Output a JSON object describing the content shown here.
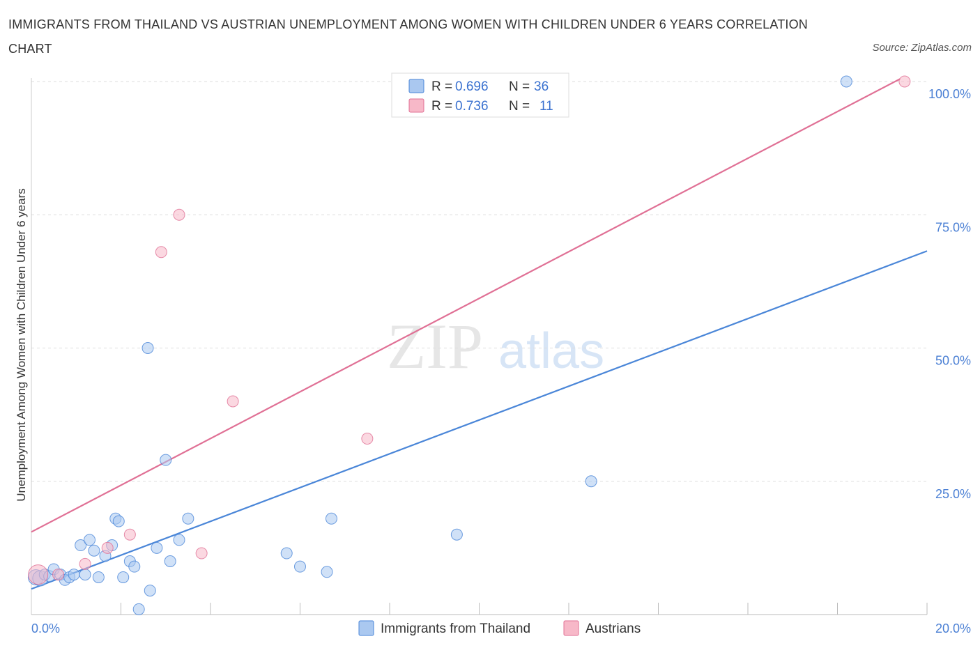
{
  "title": "IMMIGRANTS FROM THAILAND VS AUSTRIAN UNEMPLOYMENT AMONG WOMEN WITH CHILDREN UNDER 6 YEARS CORRELATION CHART",
  "source": "Source: ZipAtlas.com",
  "watermark": {
    "zip": "ZIP",
    "atlas": "atlas"
  },
  "legend_top": {
    "r_label": "R =",
    "n_label": "N =",
    "rows": [
      {
        "r": "0.696",
        "n": "36",
        "color": "#aac8f0"
      },
      {
        "r": "0.736",
        "n": "11",
        "color": "#f7b8c8"
      }
    ]
  },
  "legend_bottom": [
    {
      "label": "Immigrants from Thailand",
      "color": "#aac8f0"
    },
    {
      "label": "Austrians",
      "color": "#f7b8c8"
    }
  ],
  "chart_data": {
    "type": "scatter",
    "title": "IMMIGRANTS FROM THAILAND VS AUSTRIAN UNEMPLOYMENT AMONG WOMEN WITH CHILDREN UNDER 6 YEARS CORRELATION CHART",
    "xlabel": "",
    "ylabel": "Unemployment Among Women with Children Under 6 years",
    "xlim": [
      0,
      20
    ],
    "ylim": [
      0,
      100
    ],
    "x_tick_labels": [
      "0.0%",
      "20.0%"
    ],
    "y_tick_labels": [
      "25.0%",
      "50.0%",
      "75.0%",
      "100.0%"
    ],
    "y_ticks": [
      25,
      50,
      75,
      100
    ],
    "series": [
      {
        "name": "Immigrants from Thailand",
        "color": "#4a86d8",
        "fill": "#aac8f0",
        "r": 0.696,
        "n": 36,
        "trend": {
          "x": [
            0,
            20
          ],
          "y": [
            4.8,
            68.2
          ]
        },
        "points": [
          [
            0.1,
            7.0
          ],
          [
            0.2,
            6.8
          ],
          [
            0.3,
            7.5
          ],
          [
            0.4,
            7.2
          ],
          [
            0.5,
            8.5
          ],
          [
            0.65,
            7.5
          ],
          [
            0.75,
            6.5
          ],
          [
            0.85,
            7.0
          ],
          [
            0.95,
            7.5
          ],
          [
            1.1,
            13.0
          ],
          [
            1.2,
            7.5
          ],
          [
            1.3,
            14.0
          ],
          [
            1.4,
            12.0
          ],
          [
            1.5,
            7.0
          ],
          [
            1.65,
            11.0
          ],
          [
            1.8,
            13.0
          ],
          [
            1.88,
            18.0
          ],
          [
            1.95,
            17.5
          ],
          [
            2.05,
            7.0
          ],
          [
            2.2,
            10.0
          ],
          [
            2.3,
            9.0
          ],
          [
            2.4,
            1.0
          ],
          [
            2.6,
            50.0
          ],
          [
            2.65,
            4.5
          ],
          [
            2.8,
            12.5
          ],
          [
            3.0,
            29.0
          ],
          [
            3.1,
            10.0
          ],
          [
            3.3,
            14.0
          ],
          [
            3.5,
            18.0
          ],
          [
            5.7,
            11.5
          ],
          [
            6.0,
            9.0
          ],
          [
            6.6,
            8.0
          ],
          [
            6.7,
            18.0
          ],
          [
            9.5,
            15.0
          ],
          [
            12.5,
            25.0
          ],
          [
            18.2,
            100.0
          ]
        ]
      },
      {
        "name": "Austrians",
        "color": "#e07095",
        "fill": "#f7b8c8",
        "r": 0.736,
        "n": 11,
        "trend": {
          "x": [
            0,
            19.4
          ],
          "y": [
            15.5,
            100.5
          ]
        },
        "points": [
          [
            0.15,
            7.5
          ],
          [
            0.6,
            7.5
          ],
          [
            1.2,
            9.5
          ],
          [
            1.7,
            12.5
          ],
          [
            2.2,
            15.0
          ],
          [
            2.9,
            68.0
          ],
          [
            3.3,
            75.0
          ],
          [
            3.8,
            11.5
          ],
          [
            4.5,
            40.0
          ],
          [
            7.5,
            33.0
          ],
          [
            19.5,
            100.0
          ]
        ]
      }
    ]
  }
}
